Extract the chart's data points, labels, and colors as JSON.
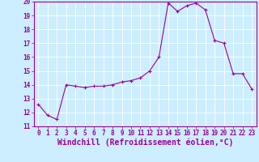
{
  "x": [
    0,
    1,
    2,
    3,
    4,
    5,
    6,
    7,
    8,
    9,
    10,
    11,
    12,
    13,
    14,
    15,
    16,
    17,
    18,
    19,
    20,
    21,
    22,
    23
  ],
  "y": [
    12.6,
    11.8,
    11.5,
    14.0,
    13.9,
    13.8,
    13.9,
    13.9,
    14.0,
    14.2,
    14.3,
    14.5,
    15.0,
    16.0,
    19.9,
    19.3,
    19.7,
    19.9,
    19.4,
    17.2,
    17.0,
    14.8,
    14.8,
    13.7
  ],
  "line_color": "#990099",
  "marker": "+",
  "marker_size": 3,
  "marker_linewidth": 0.8,
  "background_color": "#cceeff",
  "grid_color": "#ffffff",
  "xlabel": "Windchill (Refroidissement éolien,°C)",
  "xlabel_color": "#990099",
  "ylim": [
    11,
    20
  ],
  "xlim": [
    -0.5,
    23.5
  ],
  "yticks": [
    11,
    12,
    13,
    14,
    15,
    16,
    17,
    18,
    19,
    20
  ],
  "xticks": [
    0,
    1,
    2,
    3,
    4,
    5,
    6,
    7,
    8,
    9,
    10,
    11,
    12,
    13,
    14,
    15,
    16,
    17,
    18,
    19,
    20,
    21,
    22,
    23
  ],
  "tick_color": "#990099",
  "tick_label_fontsize": 5.5,
  "xlabel_fontsize": 7.0,
  "spine_color": "#990099",
  "line_width": 0.8
}
